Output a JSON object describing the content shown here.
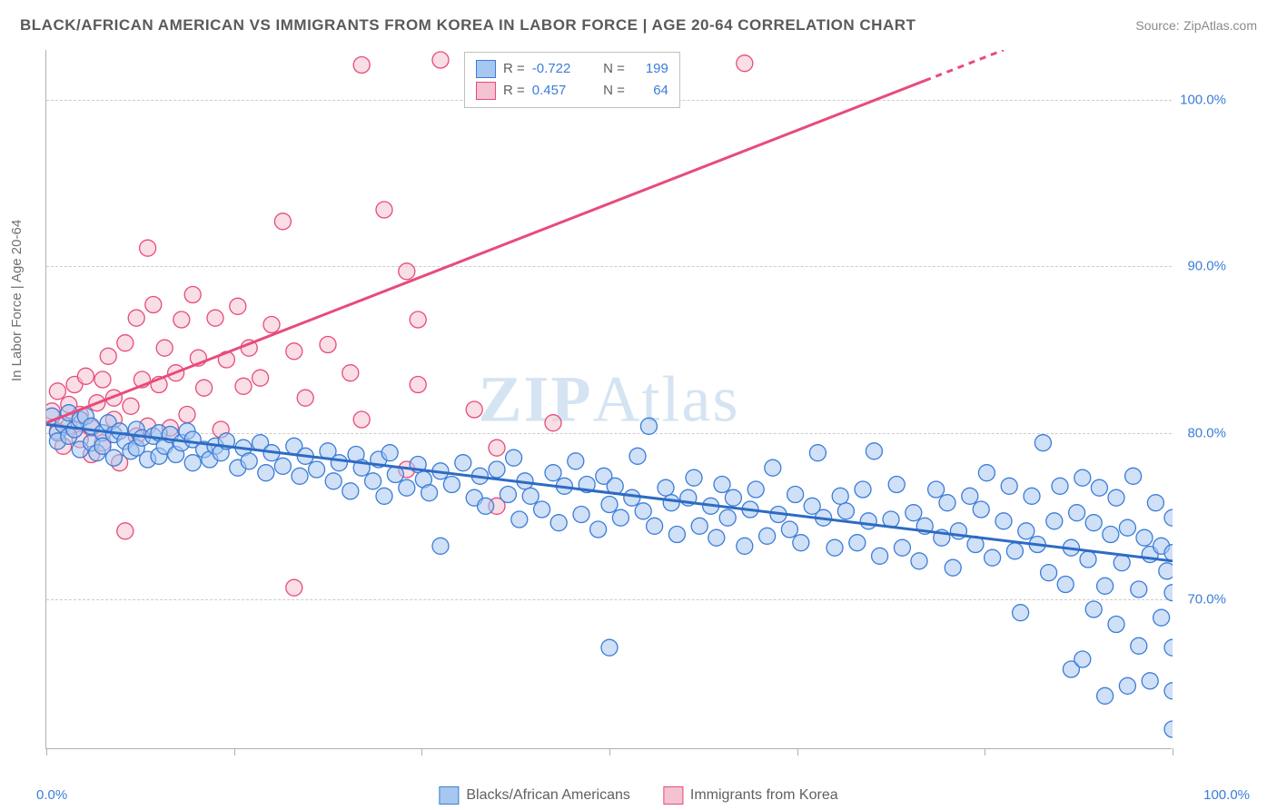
{
  "header": {
    "title": "BLACK/AFRICAN AMERICAN VS IMMIGRANTS FROM KOREA IN LABOR FORCE | AGE 20-64 CORRELATION CHART",
    "source_label": "Source:",
    "source_name": "ZipAtlas.com"
  },
  "axes": {
    "y_label": "In Labor Force | Age 20-64",
    "x_min_label": "0.0%",
    "x_max_label": "100.0%",
    "y_ticks": [
      {
        "value": 70,
        "label": "70.0%"
      },
      {
        "value": 80,
        "label": "80.0%"
      },
      {
        "value": 90,
        "label": "90.0%"
      },
      {
        "value": 100,
        "label": "100.0%"
      }
    ],
    "x_ticks_pct": [
      0,
      16.67,
      33.33,
      50,
      66.67,
      83.33,
      100
    ],
    "xlim": [
      0,
      100
    ],
    "ylim": [
      61,
      103
    ]
  },
  "styling": {
    "background_color": "#ffffff",
    "grid_color": "#cccccc",
    "axis_color": "#b0b0b0",
    "title_color": "#5a5a5a",
    "label_color": "#707070",
    "tick_label_color": "#3b7dd8",
    "marker_radius": 9,
    "marker_opacity": 0.55,
    "line_width": 3,
    "title_fontsize": 17,
    "label_fontsize": 15,
    "legend_fontsize": 15
  },
  "series": {
    "blue": {
      "legend_label": "Blacks/African Americans",
      "fill_color": "#a7c7f0",
      "stroke_color": "#3b7dd8",
      "line_color": "#2d6bc4",
      "R": "-0.722",
      "N": "199",
      "trend": {
        "x1": 0,
        "y1": 80.5,
        "x2": 100,
        "y2": 72.3
      },
      "points": [
        [
          0.5,
          81
        ],
        [
          1,
          80
        ],
        [
          1,
          79.5
        ],
        [
          1.5,
          80.5
        ],
        [
          2,
          81.2
        ],
        [
          2,
          79.8
        ],
        [
          2.5,
          80.2
        ],
        [
          3,
          79
        ],
        [
          3,
          80.8
        ],
        [
          3.5,
          81
        ],
        [
          4,
          79.4
        ],
        [
          4,
          80.4
        ],
        [
          4.5,
          78.8
        ],
        [
          5,
          80
        ],
        [
          5,
          79.2
        ],
        [
          5.5,
          80.6
        ],
        [
          6,
          79.9
        ],
        [
          6,
          78.5
        ],
        [
          6.5,
          80.1
        ],
        [
          7,
          79.5
        ],
        [
          7.5,
          78.9
        ],
        [
          8,
          80.2
        ],
        [
          8,
          79.1
        ],
        [
          8.5,
          79.7
        ],
        [
          9,
          78.4
        ],
        [
          9.5,
          79.8
        ],
        [
          10,
          80
        ],
        [
          10,
          78.6
        ],
        [
          10.5,
          79.2
        ],
        [
          11,
          79.9
        ],
        [
          11.5,
          78.7
        ],
        [
          12,
          79.4
        ],
        [
          12.5,
          80.1
        ],
        [
          13,
          78.2
        ],
        [
          13,
          79.6
        ],
        [
          14,
          79
        ],
        [
          14.5,
          78.4
        ],
        [
          15,
          79.2
        ],
        [
          15.5,
          78.8
        ],
        [
          16,
          79.5
        ],
        [
          17,
          77.9
        ],
        [
          17.5,
          79.1
        ],
        [
          18,
          78.3
        ],
        [
          19,
          79.4
        ],
        [
          19.5,
          77.6
        ],
        [
          20,
          78.8
        ],
        [
          21,
          78
        ],
        [
          22,
          79.2
        ],
        [
          22.5,
          77.4
        ],
        [
          23,
          78.6
        ],
        [
          24,
          77.8
        ],
        [
          25,
          78.9
        ],
        [
          25.5,
          77.1
        ],
        [
          26,
          78.2
        ],
        [
          27,
          76.5
        ],
        [
          27.5,
          78.7
        ],
        [
          28,
          77.9
        ],
        [
          29,
          77.1
        ],
        [
          29.5,
          78.4
        ],
        [
          30,
          76.2
        ],
        [
          30.5,
          78.8
        ],
        [
          31,
          77.5
        ],
        [
          32,
          76.7
        ],
        [
          33,
          78.1
        ],
        [
          33.5,
          77.2
        ],
        [
          34,
          76.4
        ],
        [
          35,
          77.7
        ],
        [
          35,
          73.2
        ],
        [
          36,
          76.9
        ],
        [
          37,
          78.2
        ],
        [
          38,
          76.1
        ],
        [
          38.5,
          77.4
        ],
        [
          39,
          75.6
        ],
        [
          40,
          77.8
        ],
        [
          41,
          76.3
        ],
        [
          41.5,
          78.5
        ],
        [
          42,
          74.8
        ],
        [
          42.5,
          77.1
        ],
        [
          43,
          76.2
        ],
        [
          44,
          75.4
        ],
        [
          45,
          77.6
        ],
        [
          45.5,
          74.6
        ],
        [
          46,
          76.8
        ],
        [
          47,
          78.3
        ],
        [
          47.5,
          75.1
        ],
        [
          48,
          76.9
        ],
        [
          49,
          74.2
        ],
        [
          49.5,
          77.4
        ],
        [
          50,
          67.1
        ],
        [
          50,
          75.7
        ],
        [
          50.5,
          76.8
        ],
        [
          51,
          74.9
        ],
        [
          52,
          76.1
        ],
        [
          52.5,
          78.6
        ],
        [
          53,
          75.3
        ],
        [
          53.5,
          80.4
        ],
        [
          54,
          74.4
        ],
        [
          55,
          76.7
        ],
        [
          55.5,
          75.8
        ],
        [
          56,
          73.9
        ],
        [
          57,
          76.1
        ],
        [
          57.5,
          77.3
        ],
        [
          58,
          74.4
        ],
        [
          59,
          75.6
        ],
        [
          59.5,
          73.7
        ],
        [
          60,
          76.9
        ],
        [
          60.5,
          74.9
        ],
        [
          61,
          76.1
        ],
        [
          62,
          73.2
        ],
        [
          62.5,
          75.4
        ],
        [
          63,
          76.6
        ],
        [
          64,
          73.8
        ],
        [
          64.5,
          77.9
        ],
        [
          65,
          75.1
        ],
        [
          66,
          74.2
        ],
        [
          66.5,
          76.3
        ],
        [
          67,
          73.4
        ],
        [
          68,
          75.6
        ],
        [
          68.5,
          78.8
        ],
        [
          69,
          74.9
        ],
        [
          70,
          73.1
        ],
        [
          70.5,
          76.2
        ],
        [
          71,
          75.3
        ],
        [
          72,
          73.4
        ],
        [
          72.5,
          76.6
        ],
        [
          73,
          74.7
        ],
        [
          73.5,
          78.9
        ],
        [
          74,
          72.6
        ],
        [
          75,
          74.8
        ],
        [
          75.5,
          76.9
        ],
        [
          76,
          73.1
        ],
        [
          77,
          75.2
        ],
        [
          77.5,
          72.3
        ],
        [
          78,
          74.4
        ],
        [
          79,
          76.6
        ],
        [
          79.5,
          73.7
        ],
        [
          80,
          75.8
        ],
        [
          80.5,
          71.9
        ],
        [
          81,
          74.1
        ],
        [
          82,
          76.2
        ],
        [
          82.5,
          73.3
        ],
        [
          83,
          75.4
        ],
        [
          83.5,
          77.6
        ],
        [
          84,
          72.5
        ],
        [
          85,
          74.7
        ],
        [
          85.5,
          76.8
        ],
        [
          86,
          72.9
        ],
        [
          86.5,
          69.2
        ],
        [
          87,
          74.1
        ],
        [
          87.5,
          76.2
        ],
        [
          88,
          73.3
        ],
        [
          88.5,
          79.4
        ],
        [
          89,
          71.6
        ],
        [
          89.5,
          74.7
        ],
        [
          90,
          76.8
        ],
        [
          90.5,
          70.9
        ],
        [
          91,
          73.1
        ],
        [
          91,
          65.8
        ],
        [
          91.5,
          75.2
        ],
        [
          92,
          77.3
        ],
        [
          92,
          66.4
        ],
        [
          92.5,
          72.4
        ],
        [
          93,
          74.6
        ],
        [
          93,
          69.4
        ],
        [
          93.5,
          76.7
        ],
        [
          94,
          70.8
        ],
        [
          94,
          64.2
        ],
        [
          94.5,
          73.9
        ],
        [
          95,
          76.1
        ],
        [
          95,
          68.5
        ],
        [
          95.5,
          72.2
        ],
        [
          96,
          74.3
        ],
        [
          96,
          64.8
        ],
        [
          96.5,
          77.4
        ],
        [
          97,
          70.6
        ],
        [
          97,
          67.2
        ],
        [
          97.5,
          73.7
        ],
        [
          98,
          65.1
        ],
        [
          98,
          72.7
        ],
        [
          98.5,
          75.8
        ],
        [
          99,
          68.9
        ],
        [
          99,
          73.2
        ],
        [
          99.5,
          71.7
        ],
        [
          100,
          62.2
        ],
        [
          100,
          72.8
        ],
        [
          100,
          74.9
        ],
        [
          100,
          67.1
        ],
        [
          100,
          70.4
        ],
        [
          100,
          64.5
        ]
      ]
    },
    "pink": {
      "legend_label": "Immigrants from Korea",
      "fill_color": "#f4c2d0",
      "stroke_color": "#e84b7a",
      "line_color": "#e84b7a",
      "R": "0.457",
      "N": "64",
      "trend": {
        "x1": 0,
        "y1": 80.6,
        "x2": 85,
        "y2": 103,
        "dash_from_x": 78
      },
      "points": [
        [
          0.5,
          81.3
        ],
        [
          1,
          80.1
        ],
        [
          1,
          82.5
        ],
        [
          1.5,
          79.2
        ],
        [
          2,
          81.7
        ],
        [
          2,
          80.4
        ],
        [
          2.5,
          82.9
        ],
        [
          3,
          79.6
        ],
        [
          3,
          81.1
        ],
        [
          3.5,
          83.4
        ],
        [
          4,
          80.3
        ],
        [
          4,
          78.7
        ],
        [
          4.5,
          81.8
        ],
        [
          5,
          83.2
        ],
        [
          5,
          79.4
        ],
        [
          5.5,
          84.6
        ],
        [
          6,
          80.8
        ],
        [
          6,
          82.1
        ],
        [
          6.5,
          78.2
        ],
        [
          7,
          85.4
        ],
        [
          7.5,
          81.6
        ],
        [
          8,
          86.9
        ],
        [
          8,
          79.8
        ],
        [
          7,
          74.1
        ],
        [
          8.5,
          83.2
        ],
        [
          9,
          80.4
        ],
        [
          9.5,
          87.7
        ],
        [
          10,
          82.9
        ],
        [
          10.5,
          85.1
        ],
        [
          11,
          80.3
        ],
        [
          11.5,
          83.6
        ],
        [
          12,
          86.8
        ],
        [
          12.5,
          81.1
        ],
        [
          13,
          88.3
        ],
        [
          13.5,
          84.5
        ],
        [
          14,
          82.7
        ],
        [
          15,
          86.9
        ],
        [
          15.5,
          80.2
        ],
        [
          16,
          84.4
        ],
        [
          17,
          87.6
        ],
        [
          17.5,
          82.8
        ],
        [
          18,
          85.1
        ],
        [
          19,
          83.3
        ],
        [
          20,
          86.5
        ],
        [
          21,
          92.7
        ],
        [
          22,
          84.9
        ],
        [
          23,
          82.1
        ],
        [
          25,
          85.3
        ],
        [
          9,
          91.1
        ],
        [
          27,
          83.6
        ],
        [
          28,
          80.8
        ],
        [
          30,
          93.4
        ],
        [
          32,
          89.7
        ],
        [
          33,
          82.9
        ],
        [
          35,
          102.4
        ],
        [
          28,
          102.1
        ],
        [
          38,
          81.4
        ],
        [
          40,
          75.6
        ],
        [
          40,
          79.1
        ],
        [
          32,
          77.8
        ],
        [
          33,
          86.8
        ],
        [
          22,
          70.7
        ],
        [
          62,
          102.2
        ],
        [
          45,
          80.6
        ]
      ]
    }
  },
  "stats_legend": {
    "R_label": "R =",
    "N_label": "N ="
  },
  "watermark": {
    "text_bold": "ZIP",
    "text_light": "Atlas"
  }
}
